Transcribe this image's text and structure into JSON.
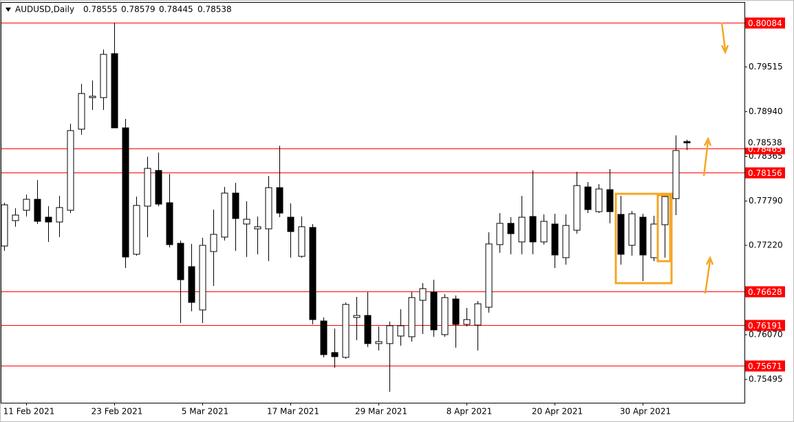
{
  "chart_data": {
    "type": "candlestick",
    "title": "AUDUSD,Daily",
    "categories": [
      null,
      null,
      "11 Feb 2021",
      null,
      null,
      null,
      null,
      null,
      null,
      null,
      "23 Feb 2021",
      null,
      null,
      null,
      null,
      null,
      null,
      null,
      "5 Mar 2021",
      null,
      null,
      null,
      null,
      null,
      null,
      null,
      "17 Mar 2021",
      null,
      null,
      null,
      null,
      null,
      null,
      null,
      "29 Mar 2021",
      null,
      null,
      null,
      null,
      null,
      null,
      null,
      "8 Apr 2021",
      null,
      null,
      null,
      null,
      null,
      null,
      null,
      "20 Apr 2021",
      null,
      null,
      null,
      null,
      null,
      null,
      null,
      "30 Apr 2021",
      null,
      null,
      null,
      null
    ],
    "open": [
      0.77211,
      0.77538,
      0.77671,
      0.77812,
      0.77582,
      0.7752,
      0.77671,
      0.78714,
      0.7912,
      0.7912,
      0.79686,
      0.78731,
      0.77105,
      0.77724,
      0.78183,
      0.77768,
      0.77246,
      0.76946,
      0.76389,
      0.7714,
      0.77326,
      0.77892,
      0.77494,
      0.77432,
      0.77432,
      0.77962,
      0.77582,
      0.77078,
      0.7745,
      0.76247,
      0.75841,
      0.75779,
      0.76292,
      0.76318,
      0.75956,
      0.75956,
      0.76053,
      0.76044,
      0.76513,
      0.76619,
      0.76071,
      0.7653,
      0.76203,
      0.76194,
      0.76424,
      0.77229,
      0.77503,
      0.77264,
      0.77591,
      0.77264,
      0.77494,
      0.77061,
      0.77414,
      0.77971,
      0.77653,
      0.77936,
      0.77618,
      0.7722,
      0.77582,
      0.77061,
      0.77485,
      0.77821,
      0.78555
    ],
    "high": [
      0.77768,
      0.77697,
      0.77874,
      0.7806,
      0.77724,
      0.77856,
      0.78784,
      0.79297,
      0.79341,
      0.79739,
      0.80084,
      0.78846,
      0.77847,
      0.7836,
      0.78413,
      0.78139,
      0.77282,
      0.77238,
      0.77317,
      0.7768,
      0.77971,
      0.78024,
      0.77786,
      0.77591,
      0.78113,
      0.78502,
      0.77759,
      0.77591,
      0.77494,
      0.76292,
      0.7615,
      0.76486,
      0.76557,
      0.76619,
      0.76177,
      0.76239,
      0.76398,
      0.76619,
      0.76734,
      0.76778,
      0.76592,
      0.76575,
      0.76415,
      0.76504,
      0.77388,
      0.77635,
      0.77582,
      0.77856,
      0.78183,
      0.77618,
      0.77626,
      0.77618,
      0.78166,
      0.78033,
      0.78007,
      0.78201,
      0.77856,
      0.77662,
      0.77626,
      0.776,
      0.77874,
      0.78634,
      0.78579
    ],
    "low": [
      0.77149,
      0.77459,
      0.77591,
      0.77494,
      0.77264,
      0.77326,
      0.77635,
      0.78643,
      0.78961,
      0.78961,
      0.78731,
      0.76928,
      0.77087,
      0.77326,
      0.77724,
      0.77193,
      0.76221,
      0.76371,
      0.76221,
      0.76698,
      0.77282,
      0.77149,
      0.7707,
      0.77105,
      0.77017,
      0.77582,
      0.77061,
      0.77061,
      0.76203,
      0.75779,
      0.75646,
      0.75761,
      0.76,
      0.75912,
      0.75867,
      0.75337,
      0.75929,
      0.75982,
      0.76079,
      0.76044,
      0.76044,
      0.75903,
      0.76177,
      0.75867,
      0.76354,
      0.77123,
      0.77105,
      0.77105,
      0.77105,
      0.77229,
      0.76928,
      0.76972,
      0.7737,
      0.77635,
      0.77635,
      0.77503,
      0.76972,
      0.77087,
      0.7676,
      0.77017,
      0.77061,
      0.77609,
      0.78445
    ],
    "close": [
      0.77741,
      0.77609,
      0.77812,
      0.77529,
      0.7752,
      0.77706,
      0.78696,
      0.79173,
      0.79138,
      0.79677,
      0.78731,
      0.7707,
      0.77733,
      0.7821,
      0.7775,
      0.77229,
      0.76778,
      0.76486,
      0.7722,
      0.77361,
      0.77892,
      0.77565,
      0.77556,
      0.77459,
      0.77962,
      0.77635,
      0.77397,
      0.77459,
      0.76265,
      0.75814,
      0.75788,
      0.7646,
      0.76318,
      0.75956,
      0.75982,
      0.76186,
      0.76186,
      0.76548,
      0.76663,
      0.76133,
      0.76548,
      0.76203,
      0.76265,
      0.76468,
      0.77238,
      0.77503,
      0.7737,
      0.77582,
      0.77264,
      0.77529,
      0.77096,
      0.77476,
      0.77989,
      0.7768,
      0.77945,
      0.77653,
      0.77105,
      0.77626,
      0.77096,
      0.77494,
      0.77847,
      0.7844,
      0.78538
    ],
    "up_color": "#ffffff",
    "down_color": "#000000",
    "levels": [
      0.80084,
      0.78465,
      0.78156,
      0.76628,
      0.76191,
      0.75671
    ],
    "level_color": "#ff0000",
    "ylim": [
      0.75195,
      0.80252
    ],
    "yticks": [
      0.79515,
      {
        "value": 0.7894,
        "label": "0.78940"
      },
      0.78365,
      {
        "value": 0.7779,
        "label": "0.77790"
      },
      {
        "value": 0.7722,
        "label": "0.77220"
      },
      {
        "value": 0.7607,
        "label": "0.76070"
      },
      0.75495
    ],
    "grid": false
  }
}
